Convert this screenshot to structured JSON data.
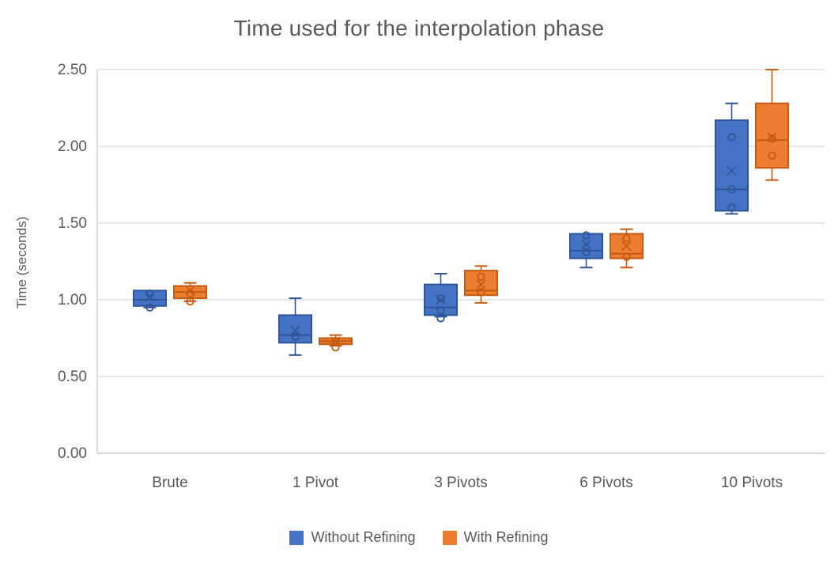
{
  "chart_data": {
    "type": "boxplot",
    "title": "Time used for the interpolation phase",
    "ylabel": "Time (seconds)",
    "xlabel": "",
    "ylim": [
      0,
      2.5
    ],
    "ytick_step": 0.5,
    "ytick_labels": [
      "0.00",
      "0.50",
      "1.00",
      "1.50",
      "2.00",
      "2.50"
    ],
    "categories": [
      "Brute",
      "1 Pivot",
      "3 Pivots",
      "6 Pivots",
      "10 Pivots"
    ],
    "grid": true,
    "legend_position": "bottom",
    "colors": {
      "grid": "#E0E0E0",
      "axis": "#CFCFCF",
      "text": "#595959"
    },
    "series": [
      {
        "name": "Without Refining",
        "color": "#4472C4",
        "border_color": "#2F5597",
        "boxes": [
          {
            "category": "Brute",
            "min": 0.95,
            "q1": 0.96,
            "median": 1.0,
            "q3": 1.06,
            "max": 1.06,
            "mean": 1.02,
            "points": [
              1.04,
              0.95
            ]
          },
          {
            "category": "1 Pivot",
            "min": 0.64,
            "q1": 0.72,
            "median": 0.77,
            "q3": 0.9,
            "max": 1.01,
            "mean": 0.8,
            "points": [
              0.76
            ]
          },
          {
            "category": "3 Pivots",
            "min": 0.89,
            "q1": 0.9,
            "median": 0.95,
            "q3": 1.1,
            "max": 1.17,
            "mean": 1.0,
            "points": [
              1.01,
              0.93,
              0.88
            ]
          },
          {
            "category": "6 Pivots",
            "min": 1.21,
            "q1": 1.27,
            "median": 1.32,
            "q3": 1.43,
            "max": 1.43,
            "mean": 1.36,
            "points": [
              1.42,
              1.31
            ]
          },
          {
            "category": "10 Pivots",
            "min": 1.56,
            "q1": 1.58,
            "median": 1.72,
            "q3": 2.17,
            "max": 2.28,
            "mean": 1.84,
            "points": [
              2.06,
              1.72,
              1.6
            ]
          }
        ]
      },
      {
        "name": "With Refining",
        "color": "#ED7D31",
        "border_color": "#C55A11",
        "boxes": [
          {
            "category": "Brute",
            "min": 0.99,
            "q1": 1.01,
            "median": 1.05,
            "q3": 1.09,
            "max": 1.11,
            "mean": 1.06,
            "points": [
              1.04,
              0.99
            ]
          },
          {
            "category": "1 Pivot",
            "min": 0.7,
            "q1": 0.71,
            "median": 0.73,
            "q3": 0.75,
            "max": 0.77,
            "mean": 0.73,
            "points": [
              0.73,
              0.69
            ]
          },
          {
            "category": "3 Pivots",
            "min": 0.98,
            "q1": 1.03,
            "median": 1.06,
            "q3": 1.19,
            "max": 1.22,
            "mean": 1.1,
            "points": [
              1.15,
              1.05
            ]
          },
          {
            "category": "6 Pivots",
            "min": 1.21,
            "q1": 1.27,
            "median": 1.3,
            "q3": 1.43,
            "max": 1.46,
            "mean": 1.35,
            "points": [
              1.4,
              1.28
            ]
          },
          {
            "category": "10 Pivots",
            "min": 1.78,
            "q1": 1.86,
            "median": 2.04,
            "q3": 2.28,
            "max": 2.5,
            "mean": 2.06,
            "points": [
              2.05,
              1.94
            ]
          }
        ]
      }
    ]
  }
}
